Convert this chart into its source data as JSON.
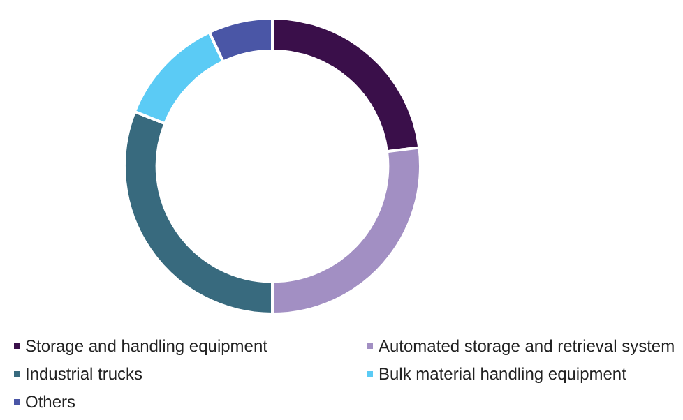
{
  "chart_data": {
    "type": "donut",
    "categories": [
      "Storage and handling equipment",
      "Automated storage and retrieval system",
      "Industrial trucks",
      "Bulk material handling equipment",
      "Others"
    ],
    "values": [
      23,
      27,
      31,
      12,
      7
    ],
    "colors": [
      "#3a0f4a",
      "#a28fc3",
      "#386a7e",
      "#5bcbf5",
      "#4a56a6"
    ],
    "legend": "bottom"
  }
}
